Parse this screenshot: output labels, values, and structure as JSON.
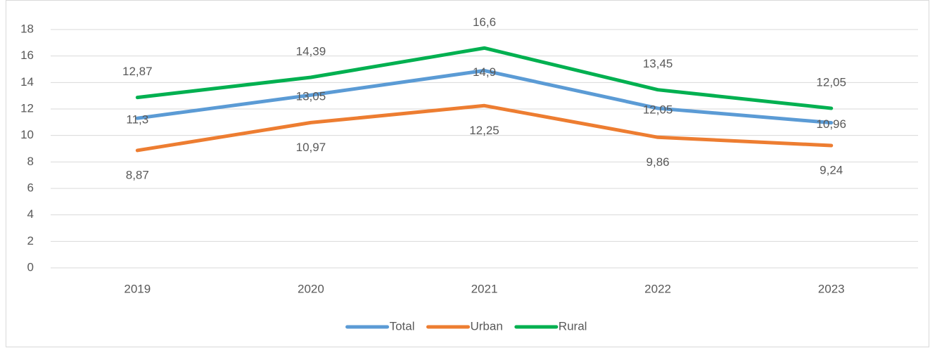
{
  "chart_data": {
    "type": "line",
    "categories": [
      "2019",
      "2020",
      "2021",
      "2022",
      "2023"
    ],
    "series": [
      {
        "name": "Total",
        "color": "#5b9bd5",
        "values": [
          11.3,
          13.05,
          14.9,
          12.05,
          10.96
        ],
        "value_labels": [
          "11,3",
          "13,05",
          "14,9",
          "12,05",
          "10,96"
        ]
      },
      {
        "name": "Urban",
        "color": "#ed7d31",
        "values": [
          8.87,
          10.97,
          12.25,
          9.86,
          9.24
        ],
        "value_labels": [
          "8,87",
          "10,97",
          "12,25",
          "9,86",
          "9,24"
        ]
      },
      {
        "name": "Rural",
        "color": "#00b050",
        "values": [
          12.87,
          14.39,
          16.6,
          13.45,
          12.05
        ],
        "value_labels": [
          "12,87",
          "14,39",
          "16,6",
          "13,45",
          "12,05"
        ]
      }
    ],
    "ylim": [
      0,
      18
    ],
    "yticks": [
      0,
      2,
      4,
      6,
      8,
      10,
      12,
      14,
      16,
      18
    ],
    "grid": true,
    "legend": "bottom"
  }
}
